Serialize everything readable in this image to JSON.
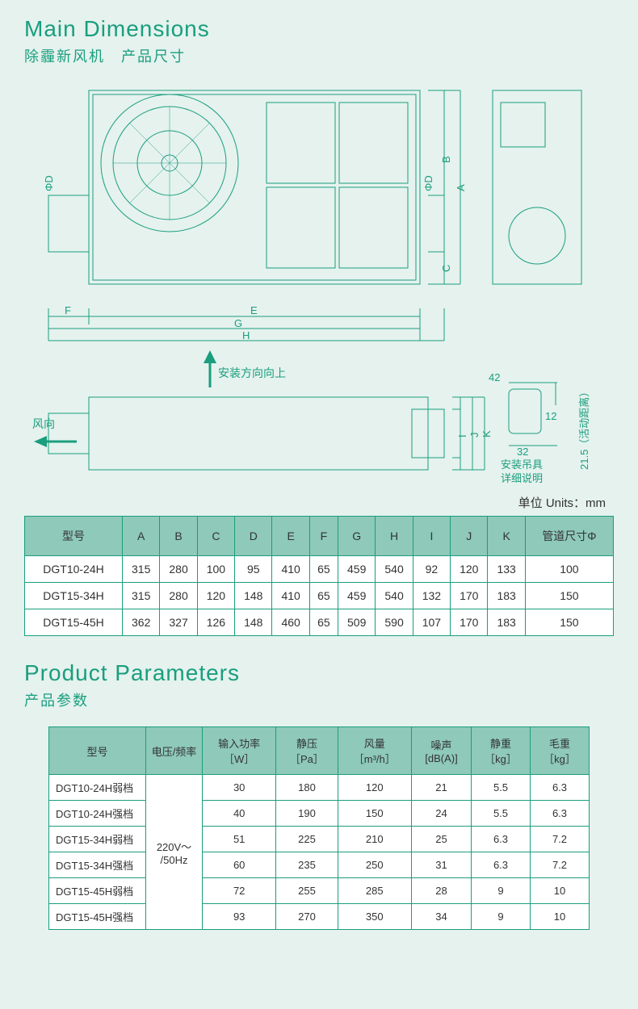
{
  "section1": {
    "title_en": "Main Dimensions",
    "title_cn": "除霾新风机　产品尺寸",
    "units_label": "单位 Units：mm"
  },
  "diagram": {
    "labels": {
      "top_view_dims": [
        "ΦD",
        "A",
        "B",
        "ΦD",
        "C",
        "E",
        "F",
        "G",
        "H"
      ],
      "side_view_dims": [
        "I",
        "J",
        "K"
      ],
      "bracket_dims": [
        "42",
        "12",
        "32",
        "21.5（活动距离）"
      ],
      "install_dir": "安装方向向上",
      "wind_dir": "风向",
      "bracket_note": "安装吊具\n详细说明"
    },
    "line_color": "#1a9e7e",
    "background_color": "#e5f2ee"
  },
  "dim_table": {
    "headers": [
      "型号",
      "A",
      "B",
      "C",
      "D",
      "E",
      "F",
      "G",
      "H",
      "I",
      "J",
      "K",
      "管道尺寸Φ"
    ],
    "header_bg": "#8ec9ba",
    "border_color": "#1a9e7e",
    "rows": [
      [
        "DGT10-24H",
        "315",
        "280",
        "100",
        "95",
        "410",
        "65",
        "459",
        "540",
        "92",
        "120",
        "133",
        "100"
      ],
      [
        "DGT15-34H",
        "315",
        "280",
        "120",
        "148",
        "410",
        "65",
        "459",
        "540",
        "132",
        "170",
        "183",
        "150"
      ],
      [
        "DGT15-45H",
        "362",
        "327",
        "126",
        "148",
        "460",
        "65",
        "509",
        "590",
        "107",
        "170",
        "183",
        "150"
      ]
    ]
  },
  "section2": {
    "title_en": "Product Parameters",
    "title_cn": "产品参数"
  },
  "param_table": {
    "headers": [
      "型号",
      "电压/频率",
      "输入功率\n［W］",
      "静压\n［Pa］",
      "风量\n［m³/h］",
      "噪声\n[dB(A)]",
      "静重\n［kg］",
      "毛重\n［kg］"
    ],
    "header_bg": "#8ec9ba",
    "border_color": "#1a9e7e",
    "voltage_merged": "220V～\n/50Hz",
    "rows": [
      [
        "DGT10-24H弱档",
        "30",
        "180",
        "120",
        "21",
        "5.5",
        "6.3"
      ],
      [
        "DGT10-24H强档",
        "40",
        "190",
        "150",
        "24",
        "5.5",
        "6.3"
      ],
      [
        "DGT15-34H弱档",
        "51",
        "225",
        "210",
        "25",
        "6.3",
        "7.2"
      ],
      [
        "DGT15-34H强档",
        "60",
        "235",
        "250",
        "31",
        "6.3",
        "7.2"
      ],
      [
        "DGT15-45H弱档",
        "72",
        "255",
        "285",
        "28",
        "9",
        "10"
      ],
      [
        "DGT15-45H强档",
        "93",
        "270",
        "350",
        "34",
        "9",
        "10"
      ]
    ]
  }
}
